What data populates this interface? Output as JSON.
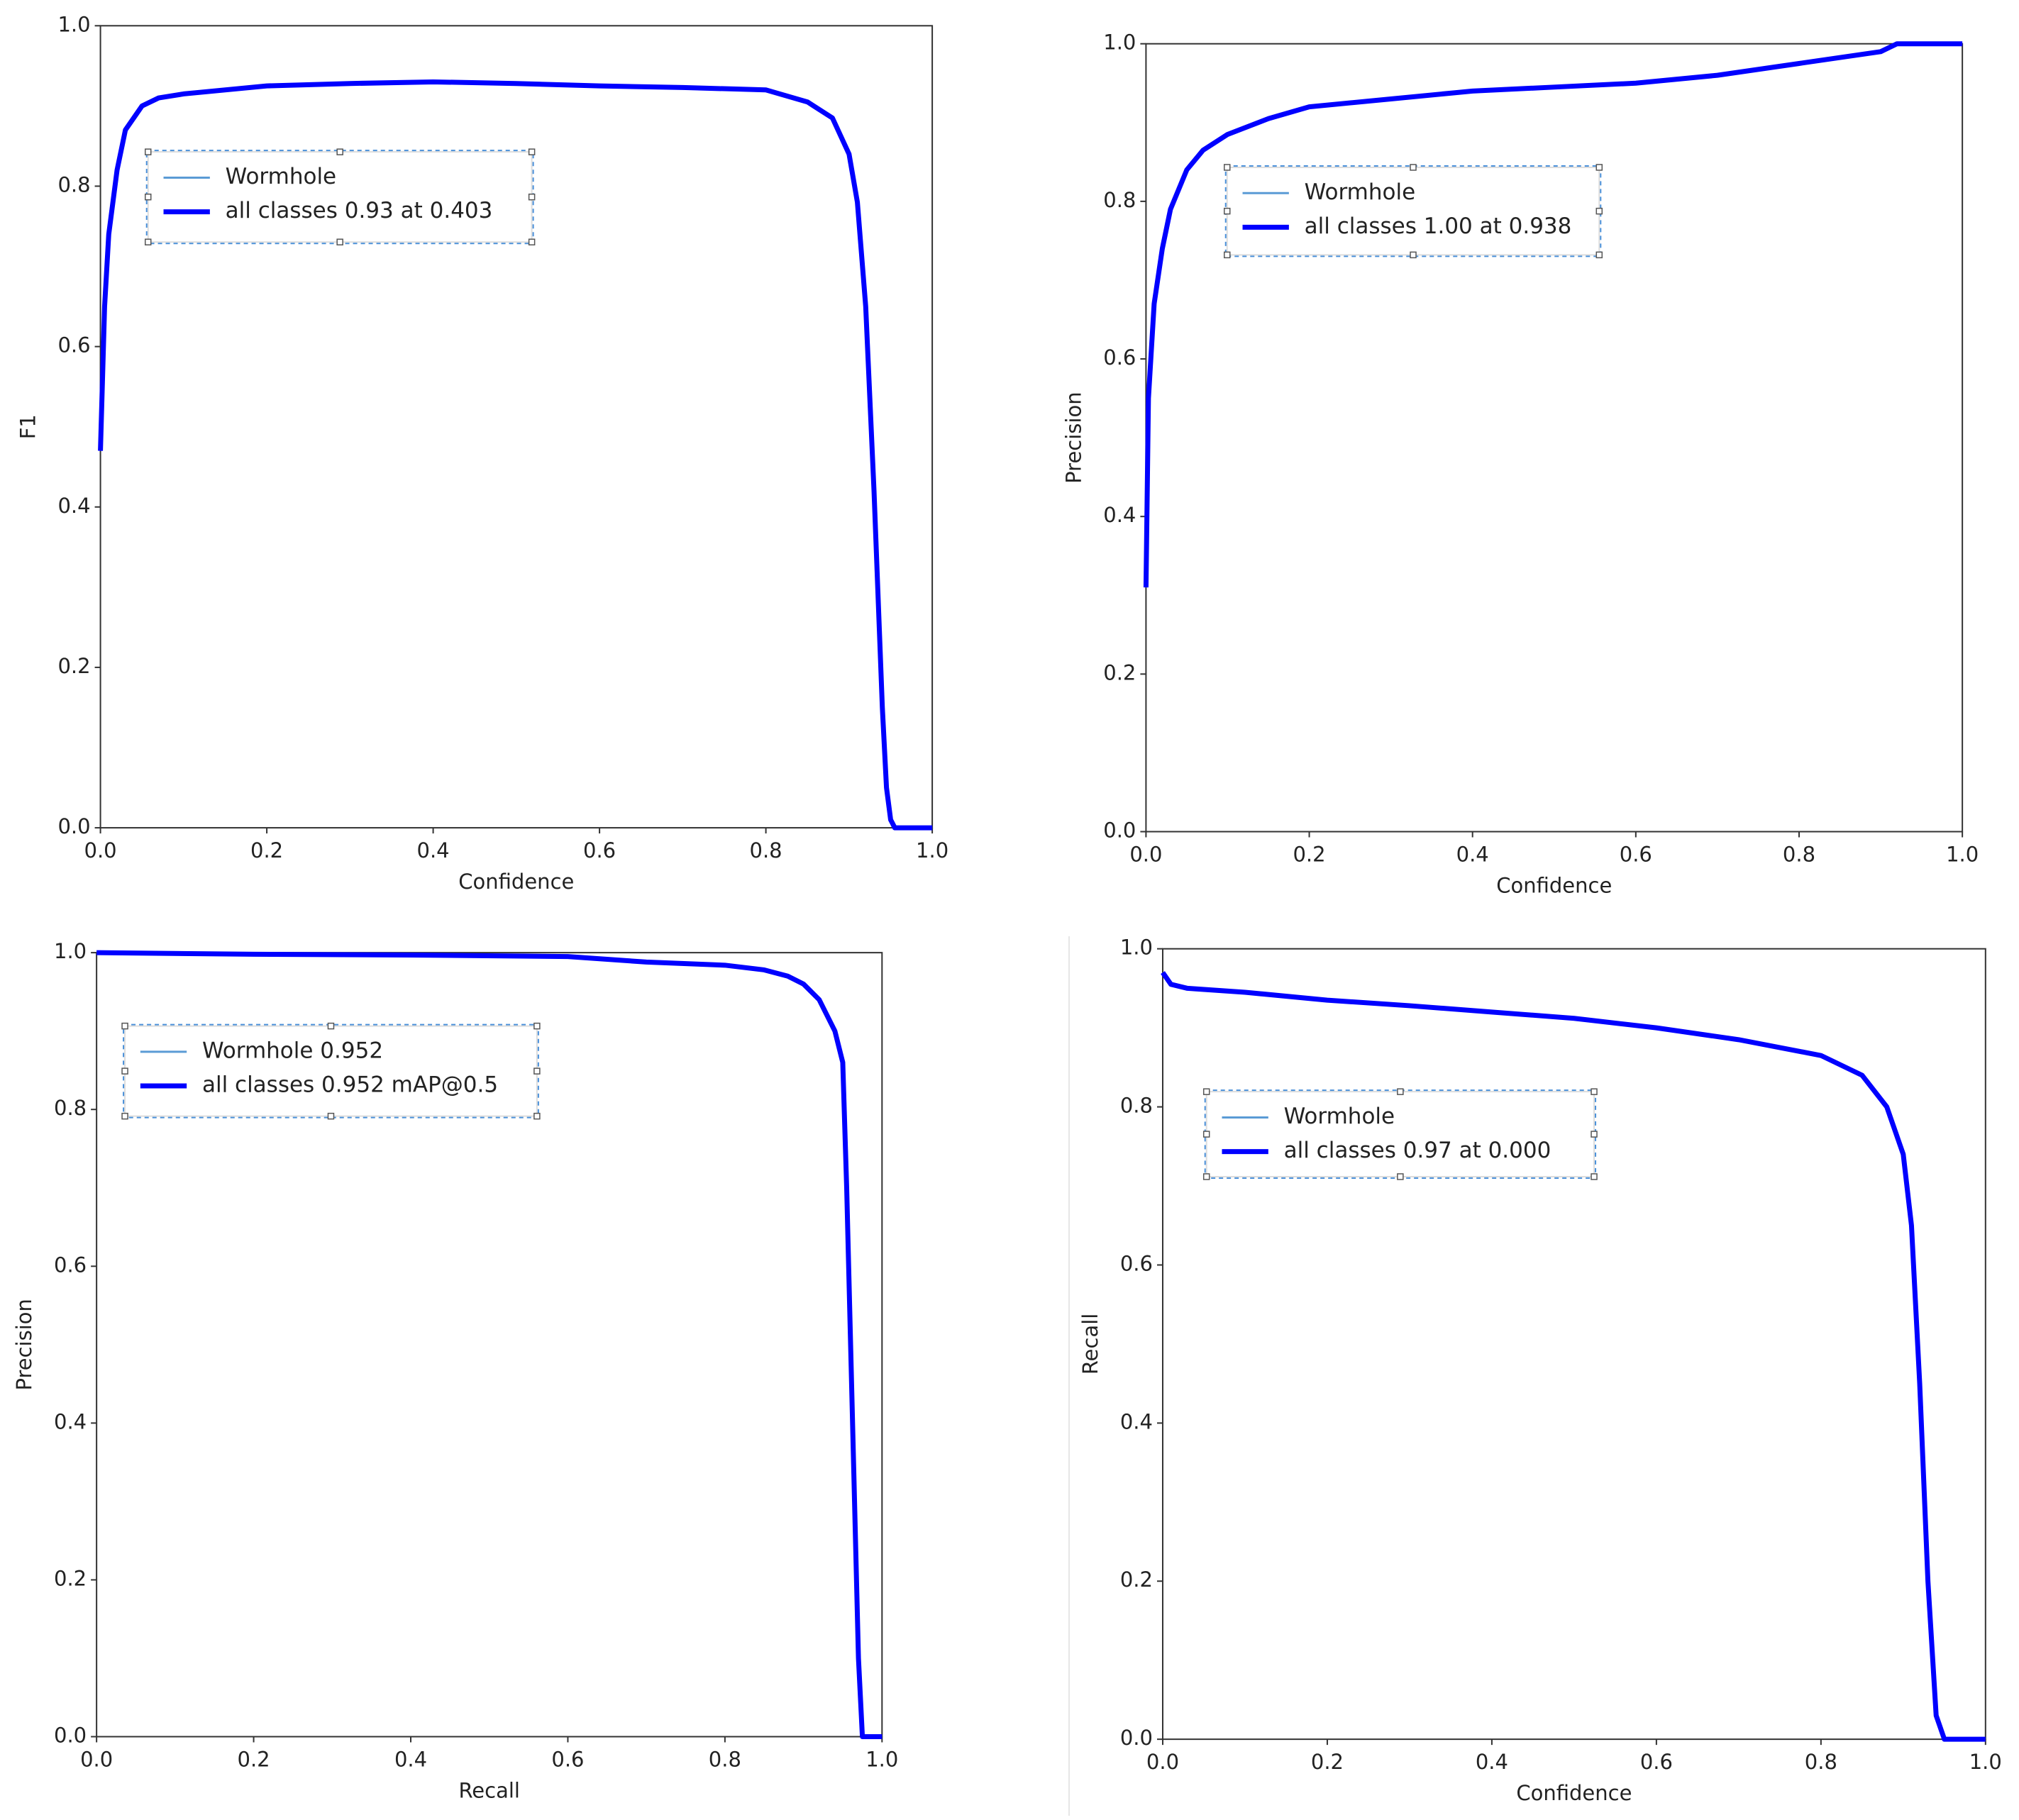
{
  "chart_data": [
    {
      "type": "line",
      "xlabel": "Confidence",
      "ylabel": "F1",
      "x": [
        0,
        0.005,
        0.01,
        0.02,
        0.03,
        0.05,
        0.07,
        0.1,
        0.2,
        0.3,
        0.4,
        0.5,
        0.6,
        0.7,
        0.8,
        0.85,
        0.88,
        0.9,
        0.91,
        0.92,
        0.93,
        0.94,
        0.945,
        0.95,
        0.955,
        0.96,
        1.0
      ],
      "series": [
        {
          "name": "Wormhole",
          "color": "#5a9bd5",
          "values": [
            0.47,
            0.65,
            0.74,
            0.82,
            0.87,
            0.9,
            0.91,
            0.915,
            0.925,
            0.928,
            0.93,
            0.928,
            0.925,
            0.923,
            0.92,
            0.905,
            0.885,
            0.84,
            0.78,
            0.65,
            0.42,
            0.15,
            0.05,
            0.01,
            0,
            0,
            0
          ]
        },
        {
          "name": "all classes 0.93 at 0.403",
          "color": "#0000ff",
          "values": [
            0.47,
            0.65,
            0.74,
            0.82,
            0.87,
            0.9,
            0.91,
            0.915,
            0.925,
            0.928,
            0.93,
            0.928,
            0.925,
            0.923,
            0.92,
            0.905,
            0.885,
            0.84,
            0.78,
            0.65,
            0.42,
            0.15,
            0.05,
            0.01,
            0,
            0,
            0
          ]
        }
      ],
      "xlim": [
        0,
        1
      ],
      "ylim": [
        0,
        1
      ],
      "xticks": [
        {
          "value": 0,
          "label": "0.0"
        },
        0.2,
        0.4,
        0.6,
        0.8,
        {
          "value": 1,
          "label": "1.0"
        }
      ],
      "yticks": [
        {
          "value": 0,
          "label": "0.0"
        },
        0.2,
        0.4,
        0.6,
        0.8,
        {
          "value": 1,
          "label": "1.0"
        }
      ]
    },
    {
      "type": "line",
      "xlabel": "Confidence",
      "ylabel": "Precision",
      "x": [
        0,
        0.003,
        0.01,
        0.02,
        0.03,
        0.05,
        0.07,
        0.1,
        0.15,
        0.2,
        0.3,
        0.4,
        0.5,
        0.6,
        0.7,
        0.8,
        0.9,
        0.92,
        0.94,
        1.0
      ],
      "series": [
        {
          "name": "Wormhole",
          "color": "#5a9bd5",
          "values": [
            0.31,
            0.55,
            0.67,
            0.74,
            0.79,
            0.84,
            0.865,
            0.885,
            0.905,
            0.92,
            0.93,
            0.94,
            0.945,
            0.95,
            0.96,
            0.975,
            0.99,
            1.0,
            1.0,
            1.0
          ]
        },
        {
          "name": "all classes 1.00 at 0.938",
          "color": "#0000ff",
          "values": [
            0.31,
            0.55,
            0.67,
            0.74,
            0.79,
            0.84,
            0.865,
            0.885,
            0.905,
            0.92,
            0.93,
            0.94,
            0.945,
            0.95,
            0.96,
            0.975,
            0.99,
            1.0,
            1.0,
            1.0
          ]
        }
      ],
      "xlim": [
        0,
        1
      ],
      "ylim": [
        0,
        1
      ],
      "xticks": [
        {
          "value": 0,
          "label": "0.0"
        },
        0.2,
        0.4,
        0.6,
        0.8,
        {
          "value": 1,
          "label": "1.0"
        }
      ],
      "yticks": [
        {
          "value": 0,
          "label": "0.0"
        },
        0.2,
        0.4,
        0.6,
        0.8,
        {
          "value": 1,
          "label": "1.0"
        }
      ]
    },
    {
      "type": "line",
      "xlabel": "Recall",
      "ylabel": "Precision",
      "x": [
        0,
        0.2,
        0.4,
        0.6,
        0.7,
        0.8,
        0.85,
        0.88,
        0.9,
        0.92,
        0.94,
        0.95,
        0.955,
        0.96,
        0.965,
        0.97,
        0.975,
        0.98,
        1.0
      ],
      "series": [
        {
          "name": "Wormhole 0.952",
          "color": "#5a9bd5",
          "values": [
            1,
            0.998,
            0.997,
            0.995,
            0.988,
            0.984,
            0.978,
            0.97,
            0.96,
            0.94,
            0.9,
            0.86,
            0.7,
            0.5,
            0.3,
            0.1,
            0,
            0,
            0
          ]
        },
        {
          "name": "all classes 0.952 mAP@0.5",
          "color": "#0000ff",
          "values": [
            1,
            0.998,
            0.997,
            0.995,
            0.988,
            0.984,
            0.978,
            0.97,
            0.96,
            0.94,
            0.9,
            0.86,
            0.7,
            0.5,
            0.3,
            0.1,
            0,
            0,
            0
          ]
        }
      ],
      "xlim": [
        0,
        1
      ],
      "ylim": [
        0,
        1
      ],
      "xticks": [
        {
          "value": 0,
          "label": "0.0"
        },
        0.2,
        0.4,
        0.6,
        0.8,
        {
          "value": 1,
          "label": "1.0"
        }
      ],
      "yticks": [
        {
          "value": 0,
          "label": "0.0"
        },
        0.2,
        0.4,
        0.6,
        0.8,
        {
          "value": 1,
          "label": "1.0"
        }
      ]
    },
    {
      "type": "line",
      "xlabel": "Confidence",
      "ylabel": "Recall",
      "x": [
        0,
        0.01,
        0.03,
        0.1,
        0.2,
        0.3,
        0.4,
        0.5,
        0.6,
        0.7,
        0.8,
        0.85,
        0.88,
        0.9,
        0.91,
        0.92,
        0.93,
        0.94,
        0.95,
        0.96,
        1.0
      ],
      "series": [
        {
          "name": "Wormhole",
          "color": "#5a9bd5",
          "values": [
            0.97,
            0.955,
            0.95,
            0.945,
            0.935,
            0.928,
            0.92,
            0.912,
            0.9,
            0.885,
            0.865,
            0.84,
            0.8,
            0.74,
            0.65,
            0.45,
            0.2,
            0.03,
            0,
            0,
            0
          ]
        },
        {
          "name": "all classes 0.97 at 0.000",
          "color": "#0000ff",
          "values": [
            0.97,
            0.955,
            0.95,
            0.945,
            0.935,
            0.928,
            0.92,
            0.912,
            0.9,
            0.885,
            0.865,
            0.84,
            0.8,
            0.74,
            0.65,
            0.45,
            0.2,
            0.03,
            0,
            0,
            0
          ]
        }
      ],
      "xlim": [
        0,
        1
      ],
      "ylim": [
        0,
        1
      ],
      "xticks": [
        {
          "value": 0,
          "label": "0.0"
        },
        0.2,
        0.4,
        0.6,
        0.8,
        {
          "value": 1,
          "label": "1.0"
        }
      ],
      "yticks": [
        {
          "value": 0,
          "label": "0.0"
        },
        0.2,
        0.4,
        0.6,
        0.8,
        {
          "value": 1,
          "label": "1.0"
        }
      ]
    }
  ]
}
